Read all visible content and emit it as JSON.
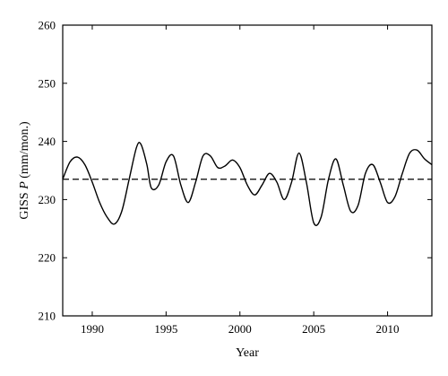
{
  "chart_data": {
    "type": "line",
    "title": "",
    "xlabel": "Year",
    "ylabel": "GISS P (mm/mon.)",
    "ylabel_prefix": "GISS ",
    "ylabel_var": "P",
    "ylabel_unit": " (mm/mon.)",
    "xlim": [
      1988,
      2013
    ],
    "ylim": [
      210,
      260
    ],
    "xticks": [
      1990,
      1995,
      2000,
      2005,
      2010
    ],
    "yticks": [
      210,
      220,
      230,
      240,
      250,
      260
    ],
    "grid": false,
    "series": [
      {
        "style": "solid",
        "x": [
          1988.0,
          1988.5,
          1989.0,
          1989.5,
          1990.0,
          1990.5,
          1991.0,
          1991.5,
          1992.0,
          1992.5,
          1993.0,
          1993.3,
          1993.7,
          1994.0,
          1994.5,
          1995.0,
          1995.5,
          1996.0,
          1996.5,
          1997.0,
          1997.5,
          1998.0,
          1998.5,
          1999.0,
          1999.5,
          2000.0,
          2000.5,
          2001.0,
          2001.5,
          2002.0,
          2002.5,
          2003.0,
          2003.5,
          2004.0,
          2004.5,
          2005.0,
          2005.5,
          2006.0,
          2006.5,
          2007.0,
          2007.5,
          2008.0,
          2008.5,
          2009.0,
          2009.5,
          2010.0,
          2010.5,
          2011.0,
          2011.5,
          2012.0,
          2012.5,
          2013.0
        ],
        "y": [
          233.5,
          236.5,
          237.3,
          236.0,
          233.0,
          229.5,
          227.0,
          225.8,
          228.0,
          233.5,
          239.0,
          239.5,
          236.0,
          232.0,
          232.5,
          236.5,
          237.5,
          232.5,
          229.5,
          233.0,
          237.5,
          237.5,
          235.5,
          235.8,
          236.8,
          235.5,
          232.5,
          230.8,
          232.5,
          234.5,
          233.0,
          230.0,
          233.0,
          238.0,
          233.0,
          226.0,
          227.0,
          233.5,
          237.0,
          232.5,
          228.0,
          229.0,
          234.5,
          236.0,
          233.0,
          229.5,
          230.5,
          234.5,
          238.0,
          238.5,
          237.0,
          236.0
        ]
      },
      {
        "style": "dashed",
        "x": [
          1988,
          2013
        ],
        "y": [
          233.5,
          233.5
        ]
      }
    ]
  }
}
